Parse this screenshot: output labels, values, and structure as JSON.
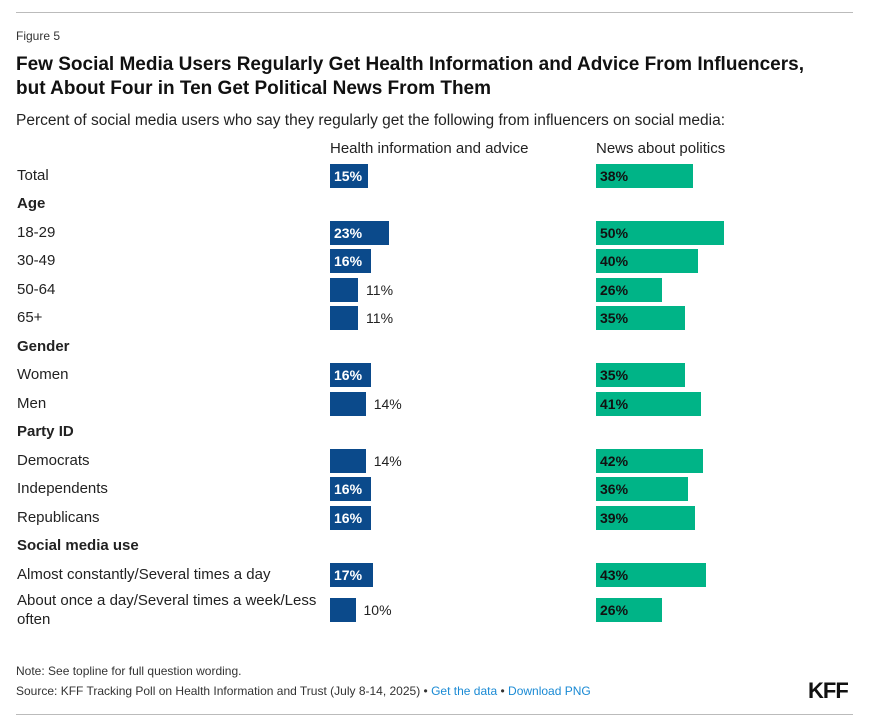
{
  "figure_label": "Figure 5",
  "chart_data": {
    "type": "bar",
    "title": "Few Social Media Users Regularly Get Health Information and Advice From Influencers, but About Four in Ten Get Political News From Them",
    "subtitle": "Percent of social media users who say they regularly get the following from influencers on social media:",
    "rows": [
      {
        "label": "Total",
        "group": false
      },
      {
        "label": "Age",
        "group": true
      },
      {
        "label": "18-29",
        "group": false
      },
      {
        "label": "30-49",
        "group": false
      },
      {
        "label": "50-64",
        "group": false
      },
      {
        "label": "65+",
        "group": false
      },
      {
        "label": "Gender",
        "group": true
      },
      {
        "label": "Women",
        "group": false
      },
      {
        "label": "Men",
        "group": false
      },
      {
        "label": "Party ID",
        "group": true
      },
      {
        "label": "Democrats",
        "group": false
      },
      {
        "label": "Independents",
        "group": false
      },
      {
        "label": "Republicans",
        "group": false
      },
      {
        "label": "Social media use",
        "group": true
      },
      {
        "label": "Almost constantly/Several times a day",
        "group": false
      },
      {
        "label": "About once a day/Several times a week/Less often",
        "group": false
      }
    ],
    "series": [
      {
        "name": "Health information and advice",
        "color": "#0b4a8b",
        "values": [
          15,
          null,
          23,
          16,
          11,
          11,
          null,
          16,
          14,
          null,
          14,
          16,
          16,
          null,
          17,
          10
        ]
      },
      {
        "name": "News about politics",
        "color": "#00b487",
        "values": [
          38,
          null,
          50,
          40,
          26,
          35,
          null,
          35,
          41,
          null,
          42,
          36,
          39,
          null,
          43,
          26
        ]
      }
    ],
    "unit": "%",
    "xlim": [
      0,
      100
    ]
  },
  "note": "Note: See topline for full question wording.",
  "source": "Source: KFF Tracking Poll on Health Information and Trust (July 8-14, 2025)",
  "links": {
    "get_data": "Get the data",
    "download": "Download PNG"
  },
  "separator": "•",
  "logo": "KFF"
}
